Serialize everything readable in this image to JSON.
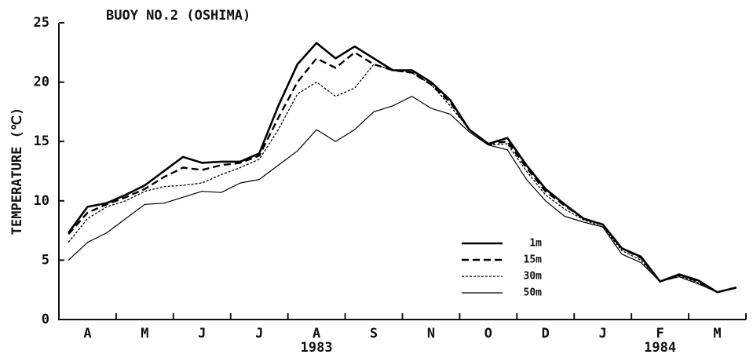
{
  "chart_data": {
    "type": "line",
    "title": "BUOY NO.2 (OSHIMA)",
    "y_label": "TEMPERATURE (℃)",
    "categories": [
      null,
      "A",
      null,
      null,
      "M",
      null,
      null,
      "J",
      null,
      null,
      "J",
      null,
      null,
      "A",
      null,
      null,
      "S",
      null,
      null,
      "N",
      null,
      null,
      "O",
      null,
      null,
      "D",
      null,
      null,
      "J",
      null,
      null,
      "F",
      null,
      null,
      "M",
      null
    ],
    "years": [
      {
        "label": "1983",
        "category": 13
      },
      {
        "label": "1984",
        "category": 31
      }
    ],
    "ylim": [
      0,
      25
    ],
    "yticks": [
      0,
      5,
      10,
      15,
      20,
      25
    ],
    "legend": "center-right",
    "series": [
      {
        "name": "1m",
        "color": "#000",
        "width": 2.6,
        "dash": "none",
        "values": [
          7.3,
          9.5,
          9.8,
          10.5,
          11.3,
          12.5,
          13.7,
          13.2,
          13.3,
          13.3,
          14,
          18,
          21.5,
          23.3,
          22,
          23,
          22,
          21,
          21,
          20,
          18.5,
          16,
          14.8,
          15.3,
          13,
          11,
          9.7,
          8.5,
          8,
          6,
          5.3,
          3.2,
          3.8,
          3.3,
          2.3,
          2.7
        ]
      },
      {
        "name": "15m",
        "color": "#000",
        "width": 2.4,
        "dash": "9 5",
        "values": [
          7.2,
          9,
          9.7,
          10.3,
          11,
          12,
          12.8,
          12.6,
          13,
          13.2,
          13.8,
          17,
          20,
          22,
          21.2,
          22.5,
          21.5,
          21,
          20.8,
          19.8,
          18.3,
          16,
          14.8,
          15,
          12.8,
          10.8,
          9.6,
          8.5,
          8,
          6,
          5.2,
          3.2,
          3.8,
          3.2,
          2.3,
          2.7
        ]
      },
      {
        "name": "30m",
        "color": "#000",
        "width": 1.3,
        "dash": "3 2",
        "values": [
          6.5,
          8.5,
          9.5,
          10,
          10.8,
          11.2,
          11.3,
          11.5,
          12.2,
          12.8,
          13.5,
          16,
          19,
          20,
          18.8,
          19.5,
          21.5,
          21,
          20.8,
          19.8,
          18,
          16,
          14.7,
          14.8,
          12.5,
          10.5,
          9.3,
          8.4,
          7.8,
          5.8,
          5,
          3.2,
          3.7,
          3.1,
          2.3,
          2.7
        ]
      },
      {
        "name": "50m",
        "color": "#000",
        "width": 1.2,
        "dash": "none",
        "values": [
          5,
          6.5,
          7.3,
          8.5,
          9.7,
          9.8,
          10.3,
          10.8,
          10.7,
          11.5,
          11.8,
          13,
          14.2,
          16,
          15,
          16,
          17.5,
          18,
          18.8,
          17.8,
          17.3,
          15.8,
          14.7,
          14.3,
          11.8,
          10,
          8.7,
          8.2,
          7.8,
          5.5,
          4.8,
          3.2,
          3.6,
          3,
          2.3,
          2.7
        ]
      }
    ]
  }
}
